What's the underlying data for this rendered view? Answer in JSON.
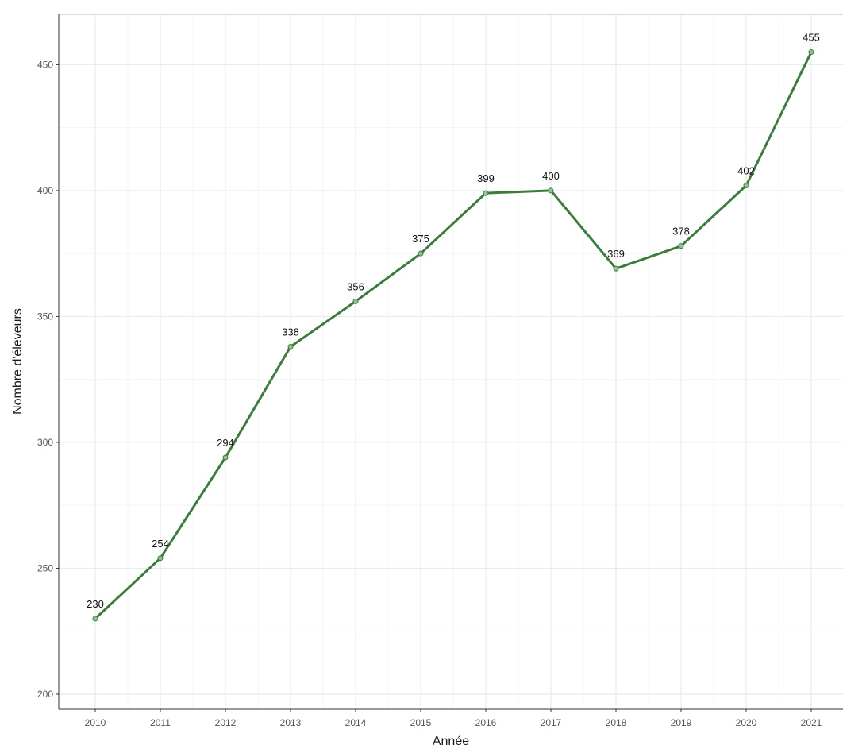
{
  "chart_data": {
    "type": "line",
    "title": "",
    "xlabel": "Année",
    "ylabel": "Nombre d'éleveurs",
    "x": [
      "2010",
      "2011",
      "2012",
      "2013",
      "2014",
      "2015",
      "2016",
      "2017",
      "2018",
      "2019",
      "2020",
      "2021"
    ],
    "series": [
      {
        "values": [
          230,
          254,
          294,
          338,
          356,
          375,
          399,
          400,
          369,
          378,
          402,
          455
        ],
        "labels": [
          "230",
          "254",
          "294",
          "338",
          "356",
          "375",
          "399",
          "400",
          "369",
          "378",
          "402",
          "455"
        ]
      }
    ],
    "yticks": [
      200,
      250,
      300,
      350,
      400,
      450
    ],
    "ytick_labels": [
      "200",
      "250",
      "300",
      "350",
      "400",
      "450"
    ],
    "ylim": [
      194,
      470
    ],
    "grid": true,
    "line_color": "#3a7d3a",
    "point_color": "#8fc48f"
  }
}
